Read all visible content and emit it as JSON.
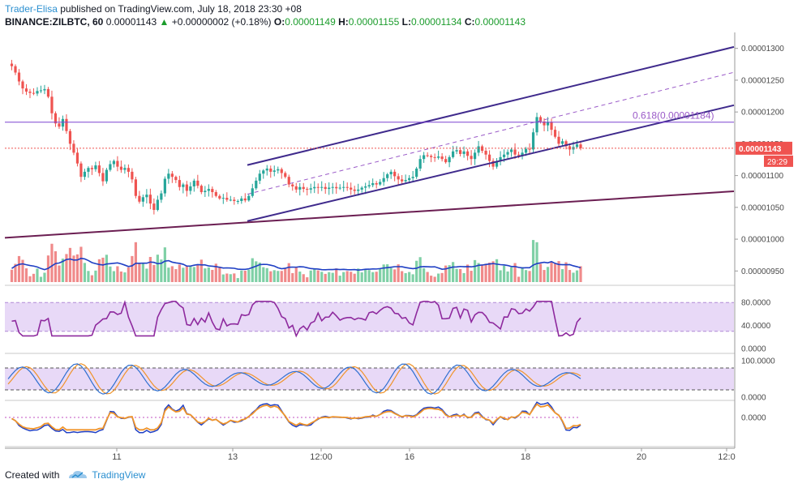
{
  "header": {
    "author": "Trader-Elisa",
    "published": "published on TradingView.com, July 18, 2018 23:30 +08",
    "symbol": "BINANCE:ZILBTC, 60",
    "last": "0.00001143",
    "change": "+0.00000002 (+0.18%)",
    "o_label": "O:",
    "o_value": "0.00001149",
    "h_label": "H:",
    "h_value": "0.00001155",
    "l_label": "L:",
    "l_value": "0.00001134",
    "c_label": "C:",
    "c_value": "0.00001143"
  },
  "footer": {
    "created_with": "Created with",
    "brand": "TradingView"
  },
  "colors": {
    "up": "#26a69a",
    "down": "#ef5350",
    "channel": "#3f2a8c",
    "trend": "#6b1e52",
    "hline": "#7b43d1",
    "price_tag": "#ef5350",
    "rsi": "#8e2a9e",
    "band": "#e8d9f7",
    "stoch_k": "#2f6fd0",
    "stoch_d": "#f0942a",
    "ma_line": "#1f3fc4",
    "osc_a": "#1f3fc4",
    "osc_b": "#f0942a",
    "grid_text": "#4a4a4a"
  },
  "chart_data": {
    "type": "candlestick",
    "price_axis": {
      "ticks": [
        "0.00001300",
        "0.00001250",
        "0.00001200",
        "0.00001150",
        "0.00001100",
        "0.00001050",
        "0.00001000",
        "0.00000950"
      ],
      "tick_values": [
        1300,
        1250,
        1200,
        1150,
        1100,
        1050,
        1000,
        950
      ],
      "range": [
        930,
        1320
      ],
      "units": "1e-8 BTC"
    },
    "time_axis": {
      "labels": [
        "11",
        "13",
        "12:00",
        "16",
        "18",
        "20",
        "12:0"
      ]
    },
    "last_price_tag": "0.00001143",
    "countdown_tag": "29:29",
    "fib_label": "0.618(0.00001184)",
    "fib_level": 1184,
    "close_series": [
      1276,
      1272,
      1262,
      1248,
      1237,
      1232,
      1230,
      1229,
      1233,
      1234,
      1236,
      1224,
      1198,
      1182,
      1177,
      1189,
      1170,
      1150,
      1136,
      1119,
      1098,
      1106,
      1112,
      1110,
      1116,
      1104,
      1091,
      1109,
      1118,
      1123,
      1114,
      1109,
      1112,
      1106,
      1094,
      1068,
      1059,
      1066,
      1070,
      1056,
      1046,
      1062,
      1072,
      1095,
      1103,
      1098,
      1093,
      1082,
      1086,
      1076,
      1083,
      1092,
      1084,
      1074,
      1076,
      1079,
      1074,
      1068,
      1064,
      1065,
      1062,
      1062,
      1060,
      1060,
      1064,
      1061,
      1068,
      1080,
      1092,
      1103,
      1108,
      1111,
      1106,
      1108,
      1110,
      1104,
      1098,
      1086,
      1083,
      1078,
      1082,
      1079,
      1078,
      1080,
      1082,
      1081,
      1082,
      1079,
      1081,
      1082,
      1080,
      1081,
      1082,
      1081,
      1078,
      1076,
      1078,
      1081,
      1083,
      1085,
      1088,
      1086,
      1090,
      1096,
      1102,
      1106,
      1099,
      1094,
      1091,
      1093,
      1096,
      1098,
      1111,
      1126,
      1132,
      1131,
      1129,
      1128,
      1130,
      1126,
      1121,
      1129,
      1138,
      1140,
      1134,
      1138,
      1131,
      1126,
      1136,
      1146,
      1139,
      1133,
      1123,
      1114,
      1123,
      1129,
      1133,
      1137,
      1141,
      1133,
      1132,
      1136,
      1142,
      1141,
      1168,
      1192,
      1185,
      1179,
      1184,
      1172,
      1161,
      1150,
      1154,
      1146,
      1141,
      1145,
      1149,
      1143
    ],
    "trendlines_y_at_x": [
      {
        "name": "channel-upper",
        "p1": [
          "13",
          1111
        ],
        "p2": [
          "20",
          1267
        ]
      },
      {
        "name": "channel-lower",
        "p1": [
          "13",
          1023
        ],
        "p2": [
          "20",
          1176
        ]
      },
      {
        "name": "channel-mid",
        "p1": [
          "13",
          1065
        ],
        "p2": [
          "20",
          1226
        ]
      },
      {
        "name": "long-support",
        "p1": [
          "10",
          1000
        ],
        "p2": [
          "20",
          1066
        ]
      }
    ],
    "rsi": {
      "ticks": [
        "80.0000",
        "40.0000",
        "0.0000"
      ],
      "tick_values": [
        80,
        40,
        0
      ],
      "band": [
        30,
        80
      ]
    },
    "stoch": {
      "ticks": [
        "100.0000",
        "0.0000"
      ],
      "tick_values": [
        100,
        0
      ],
      "band": [
        20,
        80
      ]
    },
    "oscillator": {
      "ticks": [
        "0.0000"
      ],
      "tick_values": [
        0
      ]
    }
  }
}
